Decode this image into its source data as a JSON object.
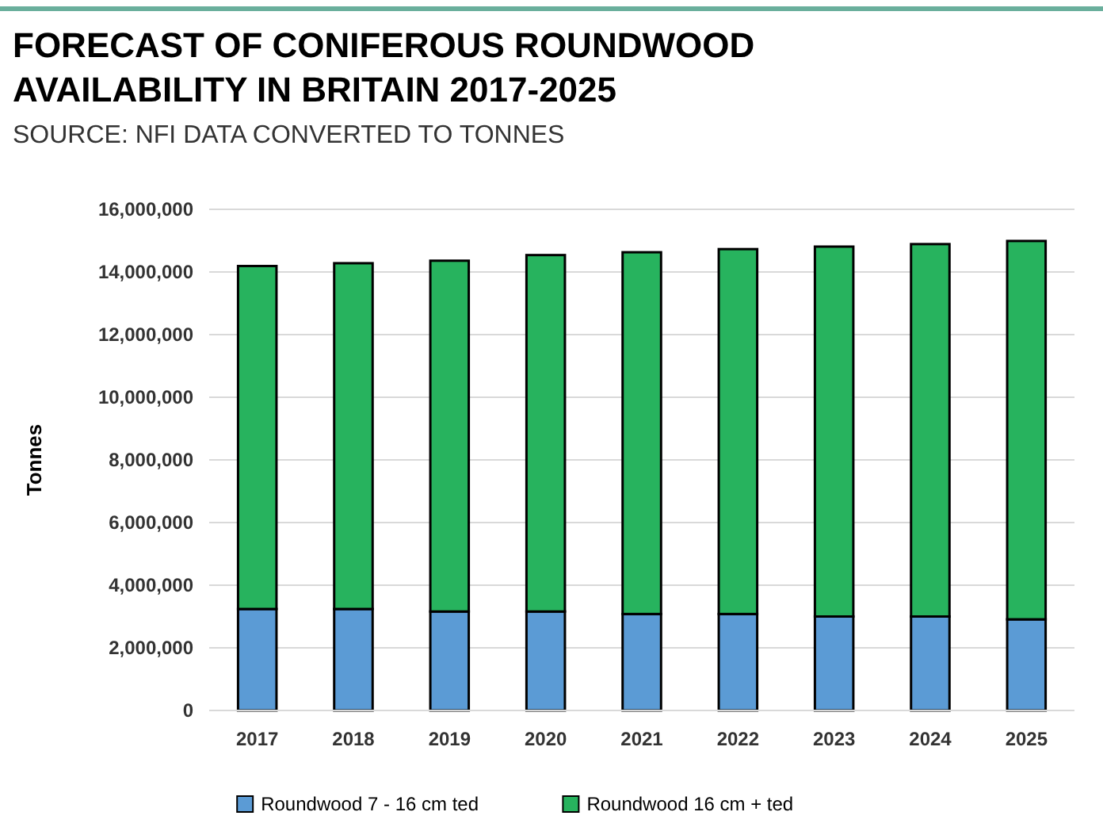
{
  "chart_data": {
    "type": "bar",
    "title": "FORECAST OF CONIFEROUS ROUNDWOOD AVAILABILITY IN BRITAIN 2017-2025",
    "subtitle": "SOURCE: NFI DATA CONVERTED TO TONNES",
    "ylabel": "Tonnes",
    "categories": [
      "2017",
      "2018",
      "2019",
      "2020",
      "2021",
      "2022",
      "2023",
      "2024",
      "2025"
    ],
    "stacked": true,
    "series": [
      {
        "name": "Roundwood 7 - 16 cm ted",
        "color": "#5b9bd5",
        "values": [
          3240000,
          3240000,
          3160000,
          3160000,
          3080000,
          3080000,
          3000000,
          3000000,
          2910000
        ]
      },
      {
        "name": "Roundwood 16 cm + ted",
        "color": "#27b35e",
        "values": [
          10950000,
          11040000,
          11200000,
          11380000,
          11550000,
          11650000,
          11810000,
          11890000,
          12080000
        ]
      }
    ],
    "ylim": [
      0,
      16000000
    ],
    "yticks": [
      {
        "value": 0,
        "label": "0"
      },
      {
        "value": 2000000,
        "label": "2,000,000"
      },
      {
        "value": 4000000,
        "label": "4,000,000"
      },
      {
        "value": 6000000,
        "label": "6,000,000"
      },
      {
        "value": 8000000,
        "label": "8,000,000"
      },
      {
        "value": 10000000,
        "label": "10,000,000"
      },
      {
        "value": 12000000,
        "label": "12,000,000"
      },
      {
        "value": 14000000,
        "label": "14,000,000"
      },
      {
        "value": 16000000,
        "label": "16,000,000"
      }
    ],
    "grid": "y",
    "legend": "bottom"
  }
}
